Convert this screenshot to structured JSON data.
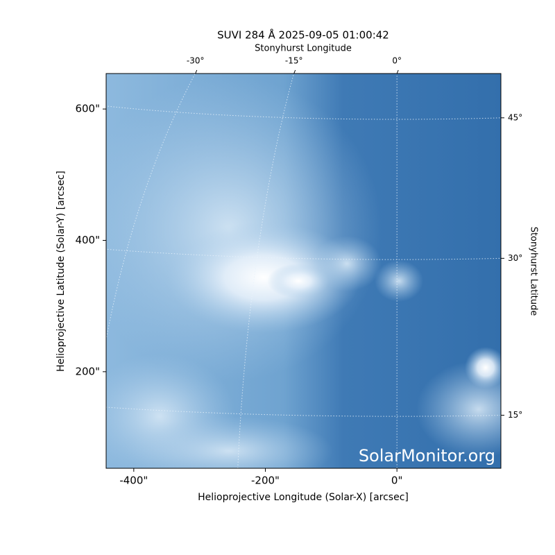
{
  "chart_data": {
    "type": "image",
    "title": "SUVI 284 Å 2025-09-05 01:00:42",
    "xlabel": "Helioprojective Longitude (Solar-X) [arcsec]",
    "ylabel": "Helioprojective Latitude (Solar-Y) [arcsec]",
    "x2label": "Stonyhurst Longitude",
    "y2label": "Stonyhurst Latitude",
    "watermark": "SolarMonitor.org",
    "xlim": [
      -442,
      158
    ],
    "ylim": [
      53,
      654
    ],
    "xticks": [
      {
        "value": -400,
        "label": "-400\""
      },
      {
        "value": -200,
        "label": "-200\""
      },
      {
        "value": 0,
        "label": "0\""
      }
    ],
    "yticks": [
      {
        "value": 200,
        "label": "200\""
      },
      {
        "value": 400,
        "label": "400\""
      },
      {
        "value": 600,
        "label": "600\""
      }
    ],
    "lon_ticks": [
      {
        "value": -30,
        "label": "-30°"
      },
      {
        "value": -15,
        "label": "-15°"
      },
      {
        "value": 0,
        "label": "0°"
      }
    ],
    "lat_ticks": [
      {
        "value": 15,
        "label": "15°"
      },
      {
        "value": 30,
        "label": "30°"
      },
      {
        "value": 45,
        "label": "45°"
      }
    ]
  }
}
